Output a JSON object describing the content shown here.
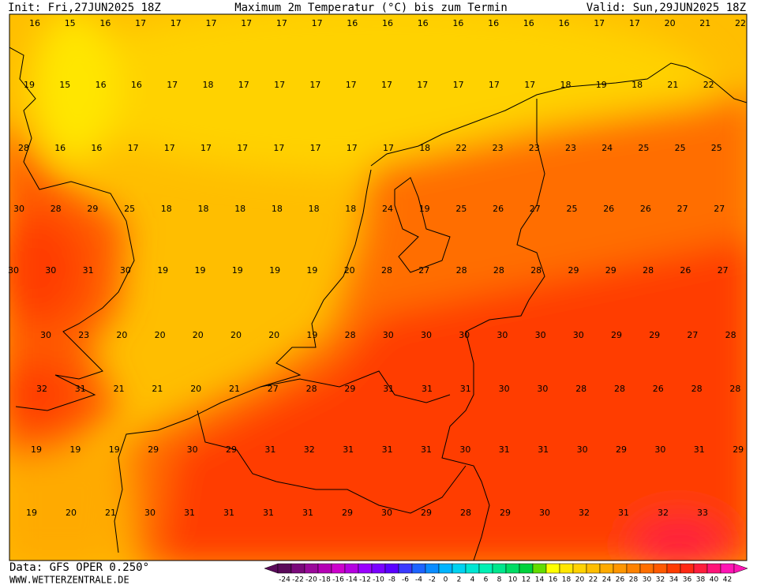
{
  "header": {
    "init": "Init: Fri,27JUN2025 18Z",
    "title": "Maximum 2m Temperatur (°C) bis zum Termin",
    "valid": "Valid: Sun,29JUN2025 18Z"
  },
  "grid": [
    [
      16,
      15,
      16,
      17,
      17,
      17,
      17,
      17,
      17,
      16,
      16,
      16,
      16,
      16,
      16,
      16,
      17,
      17,
      20,
      21,
      22
    ],
    [
      19,
      15,
      16,
      16,
      17,
      18,
      17,
      17,
      17,
      17,
      17,
      17,
      17,
      17,
      17,
      18,
      19,
      18,
      21,
      22
    ],
    [
      28,
      16,
      16,
      17,
      17,
      17,
      17,
      17,
      17,
      17,
      17,
      18,
      22,
      23,
      23,
      23,
      24,
      25,
      25,
      25
    ],
    [
      30,
      28,
      29,
      25,
      18,
      18,
      18,
      18,
      18,
      18,
      24,
      19,
      25,
      26,
      27,
      25,
      26,
      26,
      27,
      27
    ],
    [
      30,
      30,
      31,
      30,
      19,
      19,
      19,
      19,
      19,
      20,
      28,
      27,
      28,
      28,
      28,
      29,
      29,
      28,
      26,
      27
    ],
    [
      30,
      23,
      20,
      20,
      20,
      20,
      20,
      19,
      28,
      30,
      30,
      30,
      30,
      30,
      30,
      29,
      29,
      27,
      28
    ],
    [
      32,
      31,
      21,
      21,
      20,
      21,
      27,
      28,
      29,
      31,
      31,
      31,
      30,
      30,
      28,
      28,
      26,
      28,
      28
    ],
    [
      19,
      19,
      19,
      29,
      30,
      29,
      31,
      32,
      31,
      31,
      31,
      30,
      31,
      31,
      30,
      29,
      30,
      31,
      29
    ],
    [
      19,
      20,
      21,
      30,
      31,
      31,
      31,
      31,
      29,
      30,
      29,
      28,
      29,
      30,
      32,
      31,
      32,
      33
    ]
  ],
  "colorbar": {
    "ticks": [
      -24,
      -22,
      -20,
      -18,
      -16,
      -14,
      -12,
      -10,
      -8,
      -6,
      -4,
      -2,
      0,
      2,
      4,
      6,
      8,
      10,
      12,
      14,
      16,
      18,
      20,
      22,
      24,
      26,
      28,
      30,
      32,
      34,
      36,
      38,
      40,
      42
    ],
    "colors": [
      "#5a0a5a",
      "#7a0a7a",
      "#9a0a9a",
      "#b400b4",
      "#cc00cc",
      "#b400e0",
      "#9a00ff",
      "#7a00ff",
      "#5a00ff",
      "#3a3aff",
      "#1e64ff",
      "#0a8cff",
      "#00b4ff",
      "#00d2f0",
      "#00e6d2",
      "#00f0b4",
      "#00e68c",
      "#00dc64",
      "#00d23c",
      "#64dc00",
      "#ffff00",
      "#ffe600",
      "#ffd200",
      "#ffbe00",
      "#ffaa00",
      "#ff9600",
      "#ff8200",
      "#ff6e00",
      "#ff5a00",
      "#ff3c00",
      "#ff2814",
      "#ff1e3c",
      "#ff1478",
      "#ff14b4"
    ]
  },
  "footer": {
    "data": "Data: GFS OPER 0.250°",
    "site": "WWW.WETTERZENTRALE.DE"
  }
}
